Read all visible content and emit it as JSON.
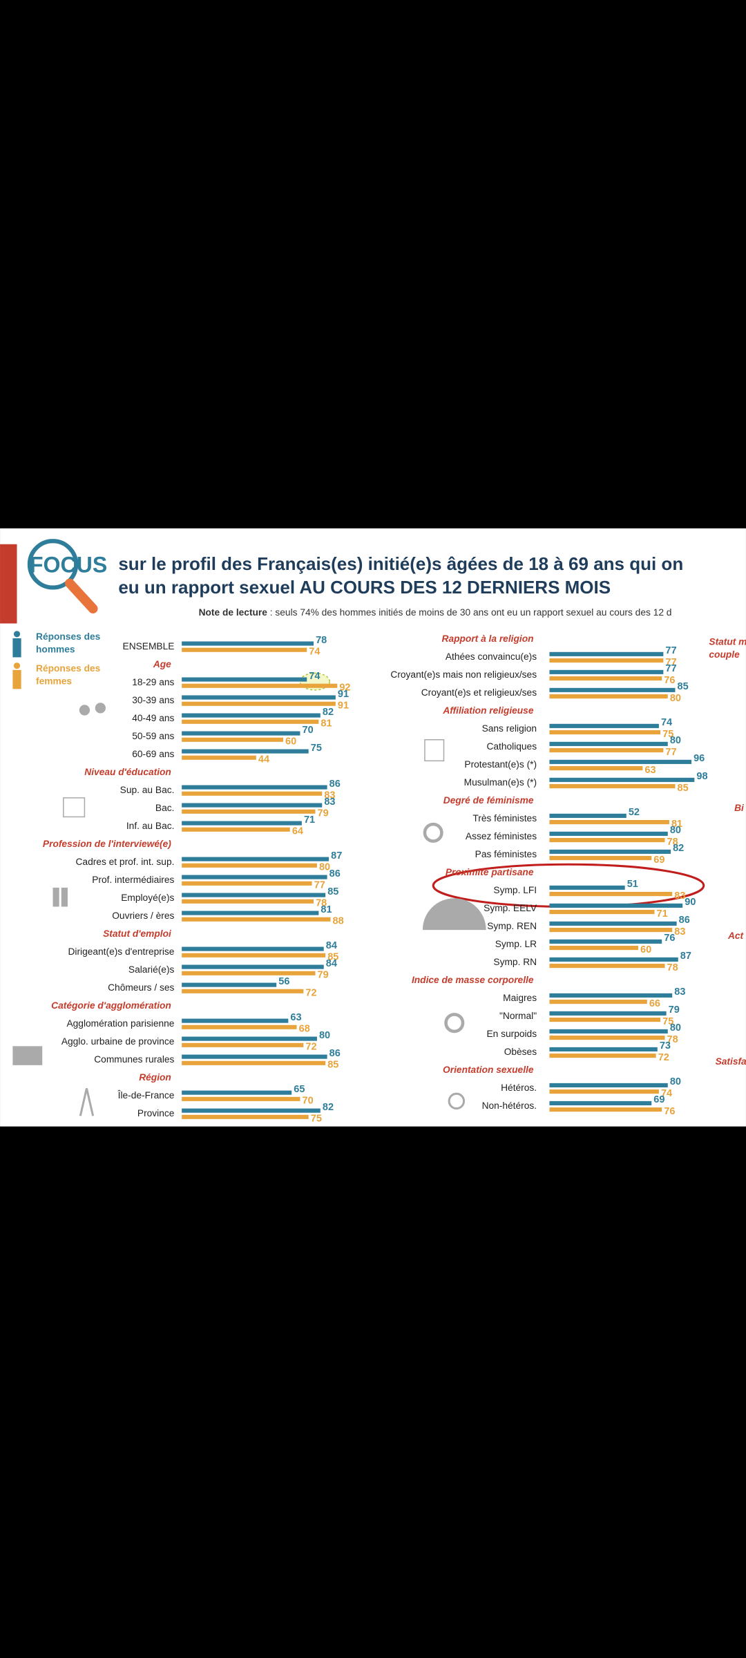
{
  "logo": "FOCUS",
  "cut_off_labels": [
    "Statut m",
    "couple",
    "Bi",
    "Act",
    "Satisfa"
  ],
  "chart_data": {
    "type": "bar",
    "orientation": "horizontal",
    "title": [
      "sur le profil des Français(es) initié(e)s âgées de 18 à 69 ans qui on",
      "eu un rapport sexuel AU COURS DES 12 DERNIERS MOIS"
    ],
    "note": [
      "Note de lecture",
      " : seuls 74% des hommes initiés de moins de 30 ans ont eu un rapport sexuel au cours des 12 d"
    ],
    "xlim": [
      0,
      100
    ],
    "series": [
      {
        "name": [
          "Réponses des",
          "hommes"
        ],
        "color": "#2e7d9a"
      },
      {
        "name": [
          "Réponses des",
          "femmes"
        ],
        "color": "#e8a33a"
      }
    ],
    "panels": [
      {
        "sections": [
          {
            "categories": [
              "ENSEMBLE"
            ],
            "series": [
              {
                "values": [
                  78
                ]
              },
              {
                "values": [
                  74
                ]
              }
            ]
          },
          {
            "title": "Age",
            "categories": [
              "18-29 ans",
              "30-39 ans",
              "40-49 ans",
              "50-59 ans",
              "60-69 ans"
            ],
            "series": [
              {
                "values": [
                  74,
                  91,
                  82,
                  70,
                  75
                ]
              },
              {
                "values": [
                  92,
                  91,
                  81,
                  60,
                  44
                ]
              }
            ]
          },
          {
            "title": "Niveau d'éducation",
            "categories": [
              "Sup. au Bac.",
              "Bac.",
              "Inf. au Bac."
            ],
            "series": [
              {
                "values": [
                  86,
                  83,
                  71
                ]
              },
              {
                "values": [
                  83,
                  79,
                  64
                ]
              }
            ]
          },
          {
            "title": "Profession de l'interviewé(e)",
            "categories": [
              "Cadres et prof. int. sup.",
              "Prof. intermédiaires",
              "Employé(e)s",
              "Ouvriers / ères"
            ],
            "series": [
              {
                "values": [
                  87,
                  86,
                  85,
                  81
                ]
              },
              {
                "values": [
                  80,
                  77,
                  78,
                  88
                ]
              }
            ]
          },
          {
            "title": "Statut d'emploi",
            "categories": [
              "Dirigeant(e)s d'entreprise",
              "Salarié(e)s",
              "Chômeurs / ses"
            ],
            "series": [
              {
                "values": [
                  84,
                  84,
                  56
                ]
              },
              {
                "values": [
                  85,
                  79,
                  72
                ]
              }
            ]
          },
          {
            "title": "Catégorie d'agglomération",
            "categories": [
              "Agglomération parisienne",
              "Agglo. urbaine de province",
              "Communes rurales"
            ],
            "series": [
              {
                "values": [
                  63,
                  80,
                  86
                ]
              },
              {
                "values": [
                  68,
                  72,
                  85
                ]
              }
            ]
          },
          {
            "title": "Région",
            "categories": [
              "Île-de-France",
              "Province"
            ],
            "series": [
              {
                "values": [
                  65,
                  82
                ]
              },
              {
                "values": [
                  70,
                  75
                ]
              }
            ]
          }
        ]
      },
      {
        "sections": [
          {
            "title": "Rapport à la religion",
            "categories": [
              "Athées convaincu(e)s",
              "Croyant(e)s mais non religieux/ses",
              "Croyant(e)s et religieux/ses"
            ],
            "series": [
              {
                "values": [
                  77,
                  77,
                  85
                ]
              },
              {
                "values": [
                  77,
                  76,
                  80
                ]
              }
            ]
          },
          {
            "title": "Affiliation religieuse",
            "categories": [
              "Sans religion",
              "Catholiques",
              "Protestant(e)s (*)",
              "Musulman(e)s (*)"
            ],
            "series": [
              {
                "values": [
                  74,
                  80,
                  96,
                  98
                ]
              },
              {
                "values": [
                  75,
                  77,
                  63,
                  85
                ]
              }
            ]
          },
          {
            "title": "Degré de féminisme",
            "categories": [
              "Très féministes",
              "Assez féministes",
              "Pas féministes"
            ],
            "series": [
              {
                "values": [
                  52,
                  80,
                  82
                ]
              },
              {
                "values": [
                  81,
                  78,
                  69
                ]
              }
            ]
          },
          {
            "title": "Proximité partisane",
            "categories": [
              "Symp. LFI",
              "Symp. EELV",
              "Symp. REN",
              "Symp. LR",
              "Symp. RN"
            ],
            "series": [
              {
                "values": [
                  51,
                  90,
                  86,
                  76,
                  87
                ]
              },
              {
                "values": [
                  83,
                  71,
                  83,
                  60,
                  78
                ]
              }
            ]
          },
          {
            "title": "Indice de masse corporelle",
            "categories": [
              "Maigres",
              "\"Normal\"",
              "En surpoids",
              "Obèses"
            ],
            "series": [
              {
                "values": [
                  83,
                  79,
                  80,
                  73
                ]
              },
              {
                "values": [
                  66,
                  75,
                  78,
                  72
                ]
              }
            ]
          },
          {
            "title": "Orientation sexuelle",
            "categories": [
              "Hétéros.",
              "Non-hétéros."
            ],
            "series": [
              {
                "values": [
                  80,
                  69
                ]
              },
              {
                "values": [
                  74,
                  76
                ]
              }
            ]
          }
        ]
      }
    ]
  }
}
